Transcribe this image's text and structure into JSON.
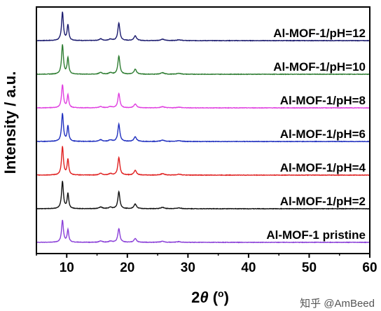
{
  "chart_data": {
    "type": "line",
    "xlabel_main": "2",
    "xlabel_var": "θ",
    "xlabel_unit": " (",
    "xlabel_unit_sup": "o",
    "xlabel_unit_close": ")",
    "ylabel": "Intensity / a.u.",
    "xlim": [
      5,
      60
    ],
    "xticks": [
      10,
      20,
      30,
      40,
      50,
      60
    ],
    "grid": false,
    "y_ticks_shown": false,
    "peaks": [
      {
        "x": 9.3,
        "height": 1.0,
        "width": 0.18
      },
      {
        "x": 10.2,
        "height": 0.55,
        "width": 0.16
      },
      {
        "x": 15.6,
        "height": 0.06,
        "width": 0.3
      },
      {
        "x": 17.2,
        "height": 0.05,
        "width": 0.3
      },
      {
        "x": 18.6,
        "height": 0.62,
        "width": 0.2
      },
      {
        "x": 21.3,
        "height": 0.17,
        "width": 0.25
      },
      {
        "x": 25.8,
        "height": 0.05,
        "width": 0.35
      },
      {
        "x": 28.5,
        "height": 0.03,
        "width": 0.4
      }
    ],
    "series": [
      {
        "name": "Al-MOF-1/pH=12",
        "color": "#1a1a6e",
        "scale": 0.92
      },
      {
        "name": "Al-MOF-1/pH=10",
        "color": "#2e7d32",
        "scale": 0.95
      },
      {
        "name": "Al-MOF-1/pH=8",
        "color": "#e040e0",
        "scale": 0.75
      },
      {
        "name": "Al-MOF-1/pH=6",
        "color": "#1f2fbf",
        "scale": 0.9
      },
      {
        "name": "Al-MOF-1/pH=4",
        "color": "#e02020",
        "scale": 0.92
      },
      {
        "name": "Al-MOF-1/pH=2",
        "color": "#111111",
        "scale": 0.88
      },
      {
        "name": "Al-MOF-1 pristine",
        "color": "#8a3fd8",
        "scale": 0.72
      }
    ]
  },
  "watermark": "知乎 @AmBeed"
}
